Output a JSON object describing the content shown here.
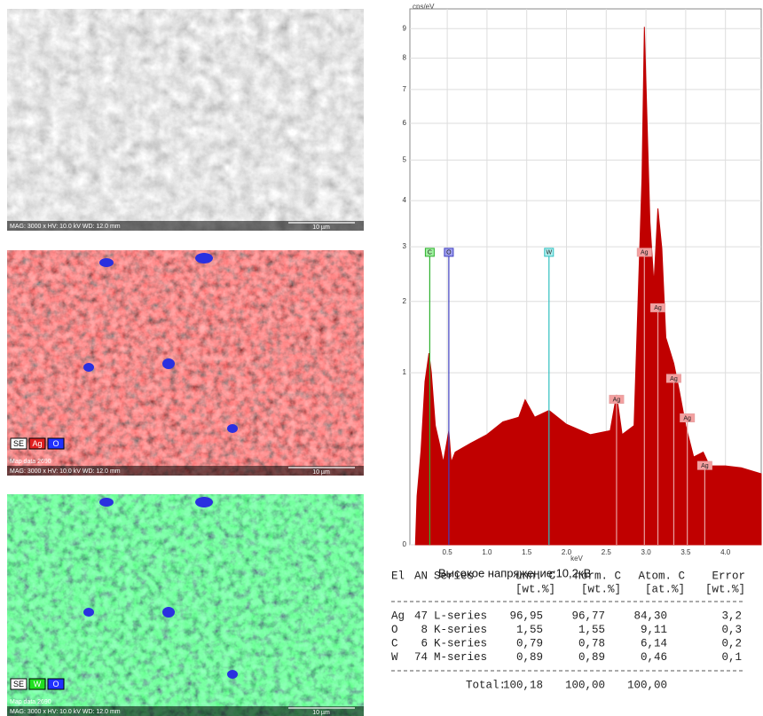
{
  "images": [
    {
      "caption": "MAG: 3000 x   HV: 10.0 kV   WD: 12.0 mm",
      "scale": "10 µm"
    },
    {
      "map": "Map data 2690",
      "legend": [
        {
          "label": "SE",
          "color": "#ffffff"
        },
        {
          "label": "Ag",
          "color": "#e02020"
        },
        {
          "label": "O",
          "color": "#2030ff"
        }
      ],
      "caption": "MAG: 3000 x   HV: 10.0 kV   WD: 12.0 mm",
      "scale": "10 µm"
    },
    {
      "map": "Map data 2690",
      "legend": [
        {
          "label": "SE",
          "color": "#ffffff"
        },
        {
          "label": "W",
          "color": "#20e020"
        },
        {
          "label": "O",
          "color": "#2030ff"
        }
      ],
      "caption": "MAG: 3000 x   HV: 10.0 kV   WD: 12.0 mm",
      "scale": "10 µm"
    }
  ],
  "chart_data": {
    "type": "area",
    "y_label": "cps/eV",
    "x_label": "keV",
    "caption": "Высокое напряжение:10,2кВ",
    "yscale": "sqrt",
    "color": "#c00000",
    "grid": true,
    "x": [
      0.1,
      0.12,
      0.17,
      0.22,
      0.27,
      0.3,
      0.35,
      0.4,
      0.45,
      0.52,
      0.55,
      0.6,
      0.8,
      1.0,
      1.2,
      1.4,
      1.48,
      1.6,
      1.78,
      2.0,
      2.3,
      2.55,
      2.63,
      2.7,
      2.85,
      2.95,
      2.98,
      3.05,
      3.1,
      3.15,
      3.2,
      3.25,
      3.35,
      3.42,
      3.5,
      3.6,
      3.72,
      3.8,
      4.0,
      4.2,
      4.45
    ],
    "values": [
      0.0,
      0.08,
      0.3,
      0.9,
      1.24,
      1.0,
      0.48,
      0.35,
      0.23,
      0.44,
      0.23,
      0.29,
      0.35,
      0.41,
      0.51,
      0.55,
      0.71,
      0.55,
      0.61,
      0.49,
      0.41,
      0.44,
      0.76,
      0.41,
      0.48,
      4.55,
      9.06,
      3.52,
      2.3,
      3.82,
      2.96,
      1.45,
      1.11,
      0.8,
      0.48,
      0.26,
      0.29,
      0.21,
      0.21,
      0.2,
      0.17
    ],
    "xlim": [
      0.03,
      4.45
    ],
    "ylim": [
      0,
      9.7
    ],
    "xticks": [
      0.5,
      {
        "value": 1,
        "label": "1.0"
      },
      1.5,
      {
        "value": 2,
        "label": "2.0"
      },
      2.5,
      {
        "value": 3,
        "label": "3.0"
      },
      3.5,
      {
        "value": 4,
        "label": "4.0"
      }
    ],
    "yticks": [
      0,
      1,
      2,
      3,
      4,
      5,
      6,
      7,
      8,
      9
    ],
    "markers": [
      {
        "label": "C",
        "x": 0.28,
        "level": 2.88,
        "color": "#30b030",
        "box": "#a0f0a0"
      },
      {
        "label": "O",
        "x": 0.52,
        "level": 2.88,
        "color": "#4040c0",
        "box": "#a0a0f0"
      },
      {
        "label": "W",
        "x": 1.78,
        "level": 2.88,
        "color": "#30c0c0",
        "box": "#b0f0f0"
      },
      {
        "label": "Ag",
        "x": 2.63,
        "level": 0.71,
        "color": "#e8a0a0",
        "box": "#f4a0a0"
      },
      {
        "label": "Ag",
        "x": 2.98,
        "level": 2.88,
        "color": "#e8a0a0",
        "box": "#f4a0a0"
      },
      {
        "label": "Ag",
        "x": 3.15,
        "level": 1.89,
        "color": "#e8a0a0",
        "box": "#f4a0a0"
      },
      {
        "label": "Ag",
        "x": 3.35,
        "level": 0.93,
        "color": "#e8a0a0",
        "box": "#f4a0a0"
      },
      {
        "label": "Ag",
        "x": 3.52,
        "level": 0.54,
        "color": "#e8a0a0",
        "box": "#f4a0a0"
      },
      {
        "label": "Ag",
        "x": 3.74,
        "level": 0.21,
        "color": "#e8a0a0",
        "box": "#f4a0a0"
      }
    ]
  },
  "table": {
    "header": [
      [
        "El",
        "AN",
        "Series",
        "unn. C",
        "norm. C",
        "Atom. C",
        "Error"
      ],
      [
        "[wt.%]",
        "[wt.%]",
        "[at.%]",
        "[wt.%]"
      ]
    ],
    "rows": [
      [
        "Ag",
        "47",
        "L-series",
        "96,95",
        "96,77",
        "84,30",
        "3,2"
      ],
      [
        "O",
        "8",
        "K-series",
        "1,55",
        "1,55",
        "9,11",
        "0,3"
      ],
      [
        "C",
        "6",
        "K-series",
        "0,79",
        "0,78",
        "6,14",
        "0,2"
      ],
      [
        "W",
        "74",
        "M-series",
        "0,89",
        "0,89",
        "0,46",
        "0,1"
      ]
    ],
    "total": [
      "Total:",
      "100,18",
      "100,00",
      "100,00"
    ]
  }
}
